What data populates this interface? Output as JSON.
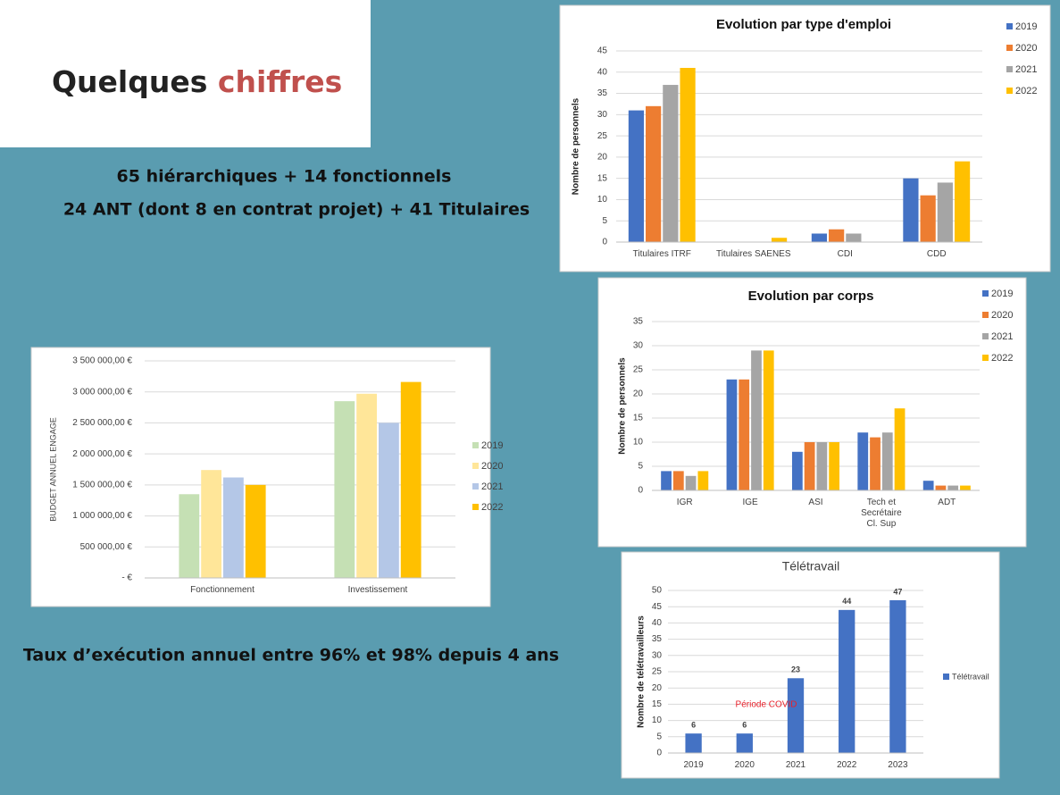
{
  "slide": {
    "title_first": "Quelques",
    "title_second": "chiffres",
    "lines": [
      "65 hiérarchiques + 14 fonctionnels",
      "24 ANT (dont 8 en contrat projet) + 41 Titulaires"
    ],
    "footer": "Taux d’exécution annuel entre 96% et 98% depuis 4 ans"
  },
  "chart_data": [
    {
      "type": "bar",
      "title": "Evolution par type d'emploi",
      "ylabel": "Nombre de personnels",
      "categories": [
        "Titulaires ITRF",
        "Titulaires SAENES",
        "CDI",
        "CDD"
      ],
      "series": [
        {
          "name": "2019",
          "color": "#4472c4",
          "values": [
            31,
            0,
            2,
            15
          ]
        },
        {
          "name": "2020",
          "color": "#ed7d31",
          "values": [
            32,
            0,
            3,
            11
          ]
        },
        {
          "name": "2021",
          "color": "#a5a5a5",
          "values": [
            37,
            0,
            2,
            14
          ]
        },
        {
          "name": "2022",
          "color": "#ffc000",
          "values": [
            41,
            1,
            0,
            19
          ]
        }
      ],
      "ylim": [
        0,
        45
      ],
      "yticks": [
        0,
        5,
        10,
        15,
        20,
        25,
        30,
        35,
        40,
        45
      ],
      "grid": true,
      "legend": "right"
    },
    {
      "type": "bar",
      "title": "Evolution par corps",
      "ylabel": "Nombre de personnels",
      "categories": [
        "IGR",
        "IGE",
        "ASI",
        "Tech et Secrétaire Cl. Sup",
        "ADT"
      ],
      "series": [
        {
          "name": "2019",
          "color": "#4472c4",
          "values": [
            4,
            23,
            8,
            12,
            2
          ]
        },
        {
          "name": "2020",
          "color": "#ed7d31",
          "values": [
            4,
            23,
            10,
            11,
            1
          ]
        },
        {
          "name": "2021",
          "color": "#a5a5a5",
          "values": [
            3,
            29,
            10,
            12,
            1
          ]
        },
        {
          "name": "2022",
          "color": "#ffc000",
          "values": [
            4,
            29,
            10,
            17,
            1
          ]
        }
      ],
      "ylim": [
        0,
        35
      ],
      "yticks": [
        0,
        5,
        10,
        15,
        20,
        25,
        30,
        35
      ],
      "grid": true,
      "legend": "right"
    },
    {
      "type": "bar",
      "ylabel": "BUDGET ANNUEL ENGAGE",
      "categories": [
        "Fonctionnement",
        "Investissement"
      ],
      "series": [
        {
          "name": "2019",
          "color": "#c5e0b4",
          "values": [
            1350000,
            2850000
          ]
        },
        {
          "name": "2020",
          "color": "#ffe699",
          "values": [
            1740000,
            2970000
          ]
        },
        {
          "name": "2021",
          "color": "#b4c7e7",
          "values": [
            1620000,
            2500000
          ]
        },
        {
          "name": "2022",
          "color": "#ffc000",
          "values": [
            1500000,
            3160000
          ]
        }
      ],
      "ylim": [
        0,
        3500000
      ],
      "yticks": [
        {
          "value": 0,
          "label": "-   €"
        },
        {
          "value": 500000,
          "label": "500 000,00 €"
        },
        {
          "value": 1000000,
          "label": "1 000 000,00 €"
        },
        {
          "value": 1500000,
          "label": "1 500 000,00 €"
        },
        {
          "value": 2000000,
          "label": "2 000 000,00 €"
        },
        {
          "value": 2500000,
          "label": "2 500 000,00 €"
        },
        {
          "value": 3000000,
          "label": "3 000 000,00 €"
        },
        {
          "value": 3500000,
          "label": "3 500 000,00 €"
        }
      ],
      "grid": true,
      "legend": "right"
    },
    {
      "type": "bar",
      "title": "Télétravail",
      "ylabel": "Nombre de télétravailleurs",
      "categories": [
        "2019",
        "2020",
        "2021",
        "2022",
        "2023"
      ],
      "series": [
        {
          "name": "Télétravail",
          "color": "#4472c4",
          "values": [
            6,
            6,
            23,
            44,
            47
          ]
        }
      ],
      "ylim": [
        0,
        50
      ],
      "yticks": [
        0,
        5,
        10,
        15,
        20,
        25,
        30,
        35,
        40,
        45,
        50
      ],
      "grid": true,
      "legend": "right",
      "data_labels": true,
      "annotation": "Période COVID"
    }
  ]
}
